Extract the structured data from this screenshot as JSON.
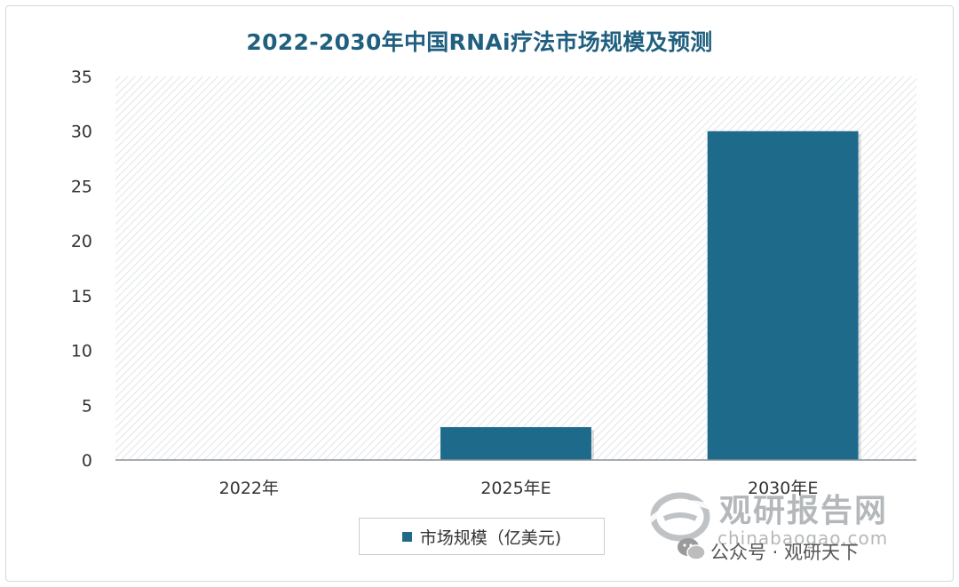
{
  "chart_data": {
    "type": "bar",
    "title": "2022-2030年中国RNAi疗法市场规模及预测",
    "categories": [
      "2022年",
      "2025年E",
      "2030年E"
    ],
    "series": [
      {
        "name": "市场规模（亿美元)",
        "values": [
          0,
          3,
          30
        ],
        "color": "#1d6a8b"
      }
    ],
    "ylim": [
      0,
      35
    ],
    "yticks": [
      0,
      5,
      10,
      15,
      20,
      25,
      30,
      35
    ],
    "xlabel": "",
    "ylabel": "",
    "grid": false,
    "background_pattern": "diagonal-hatch",
    "legend_position": "bottom-center"
  },
  "watermark": {
    "brand": "观研报告网",
    "url": "chinabaogao.com",
    "logo_icon": "globe-swoosh-icon",
    "wechat_icon": "wechat-icon",
    "wechat_text": "公众号 · 观研天下"
  }
}
